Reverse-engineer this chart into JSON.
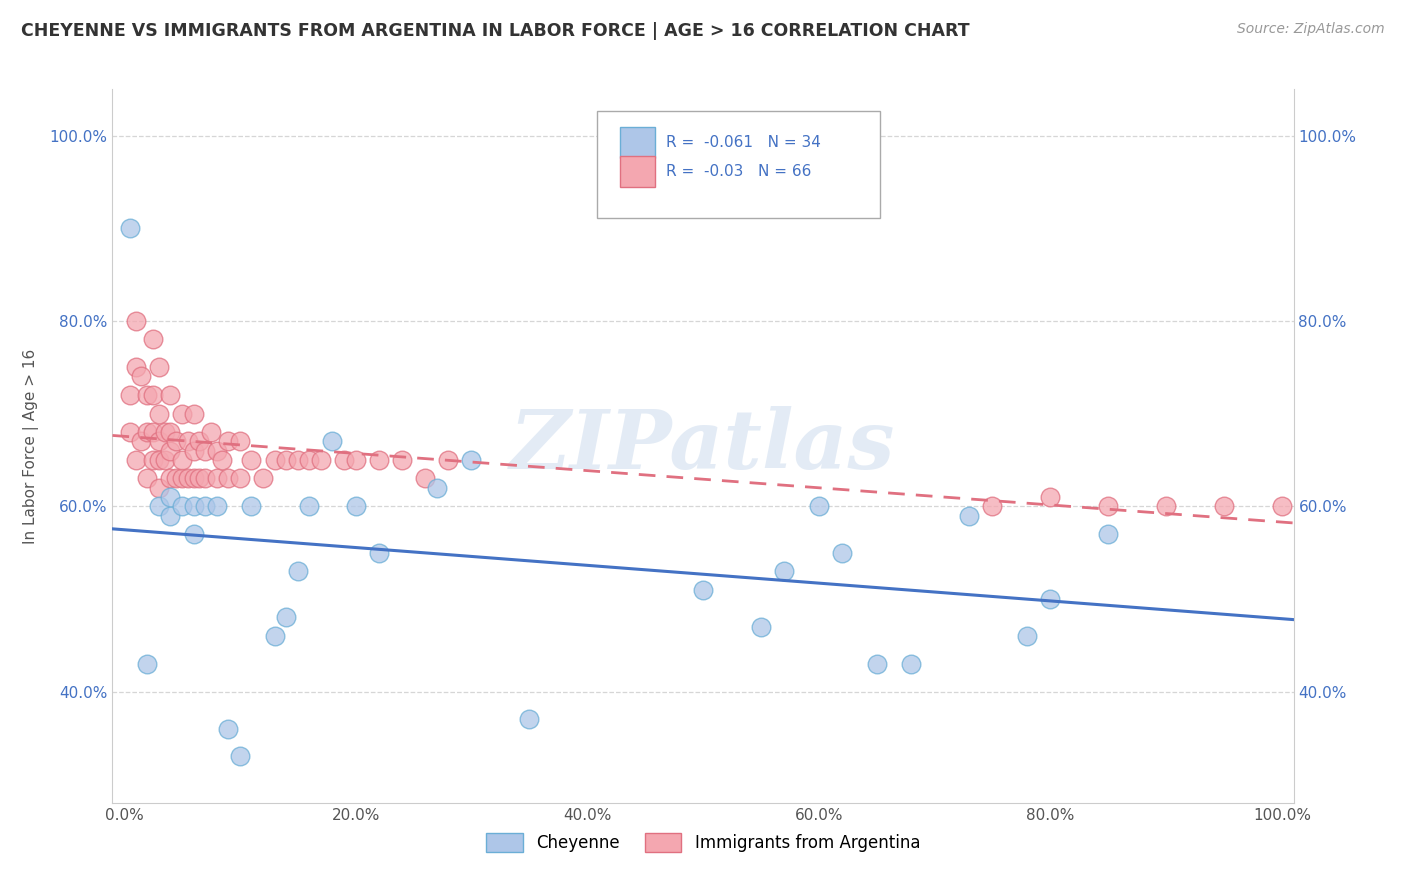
{
  "title": "CHEYENNE VS IMMIGRANTS FROM ARGENTINA IN LABOR FORCE | AGE > 16 CORRELATION CHART",
  "source": "Source: ZipAtlas.com",
  "ylabel": "In Labor Force | Age > 16",
  "background_color": "#ffffff",
  "plot_bg_color": "#ffffff",
  "grid_color": "#cccccc",
  "cheyenne_color": "#aec6e8",
  "argentina_color": "#f4a7b0",
  "cheyenne_edge": "#6baed6",
  "argentina_edge": "#e07080",
  "trend_cheyenne_color": "#4472c4",
  "trend_argentina_color": "#e07080",
  "cheyenne_R": -0.061,
  "cheyenne_N": 34,
  "argentina_R": -0.03,
  "argentina_N": 66,
  "xlim": [
    -0.01,
    1.01
  ],
  "ylim": [
    0.28,
    1.05
  ],
  "xticks": [
    0.0,
    0.2,
    0.4,
    0.6,
    0.8,
    1.0
  ],
  "xtick_labels": [
    "0.0%",
    "20.0%",
    "40.0%",
    "60.0%",
    "80.0%",
    "100.0%"
  ],
  "ytick_labels": [
    "40.0%",
    "60.0%",
    "80.0%",
    "100.0%"
  ],
  "yticks": [
    0.4,
    0.6,
    0.8,
    1.0
  ],
  "watermark": "ZIPatlas",
  "cheyenne_x": [
    0.005,
    0.02,
    0.03,
    0.04,
    0.04,
    0.05,
    0.06,
    0.06,
    0.07,
    0.08,
    0.09,
    0.1,
    0.11,
    0.13,
    0.14,
    0.15,
    0.16,
    0.18,
    0.2,
    0.22,
    0.27,
    0.3,
    0.35,
    0.5,
    0.55,
    0.57,
    0.6,
    0.62,
    0.65,
    0.68,
    0.73,
    0.78,
    0.8,
    0.85
  ],
  "cheyenne_y": [
    0.9,
    0.43,
    0.6,
    0.59,
    0.61,
    0.6,
    0.57,
    0.6,
    0.6,
    0.6,
    0.36,
    0.33,
    0.6,
    0.46,
    0.48,
    0.53,
    0.6,
    0.67,
    0.6,
    0.55,
    0.62,
    0.65,
    0.37,
    0.51,
    0.47,
    0.53,
    0.6,
    0.55,
    0.43,
    0.43,
    0.59,
    0.46,
    0.5,
    0.57
  ],
  "argentina_x": [
    0.005,
    0.005,
    0.01,
    0.01,
    0.01,
    0.015,
    0.015,
    0.02,
    0.02,
    0.02,
    0.025,
    0.025,
    0.025,
    0.025,
    0.03,
    0.03,
    0.03,
    0.03,
    0.03,
    0.035,
    0.035,
    0.04,
    0.04,
    0.04,
    0.04,
    0.045,
    0.045,
    0.05,
    0.05,
    0.05,
    0.055,
    0.055,
    0.06,
    0.06,
    0.06,
    0.065,
    0.065,
    0.07,
    0.07,
    0.075,
    0.08,
    0.08,
    0.085,
    0.09,
    0.09,
    0.1,
    0.1,
    0.11,
    0.12,
    0.13,
    0.14,
    0.15,
    0.16,
    0.17,
    0.19,
    0.2,
    0.22,
    0.24,
    0.26,
    0.28,
    0.75,
    0.8,
    0.85,
    0.9,
    0.95,
    1.0
  ],
  "argentina_y": [
    0.68,
    0.72,
    0.65,
    0.75,
    0.8,
    0.67,
    0.74,
    0.63,
    0.68,
    0.72,
    0.65,
    0.68,
    0.72,
    0.78,
    0.62,
    0.65,
    0.67,
    0.7,
    0.75,
    0.65,
    0.68,
    0.63,
    0.66,
    0.68,
    0.72,
    0.63,
    0.67,
    0.63,
    0.65,
    0.7,
    0.63,
    0.67,
    0.63,
    0.66,
    0.7,
    0.63,
    0.67,
    0.63,
    0.66,
    0.68,
    0.63,
    0.66,
    0.65,
    0.63,
    0.67,
    0.63,
    0.67,
    0.65,
    0.63,
    0.65,
    0.65,
    0.65,
    0.65,
    0.65,
    0.65,
    0.65,
    0.65,
    0.65,
    0.63,
    0.65,
    0.6,
    0.61,
    0.6,
    0.6,
    0.6,
    0.6
  ]
}
